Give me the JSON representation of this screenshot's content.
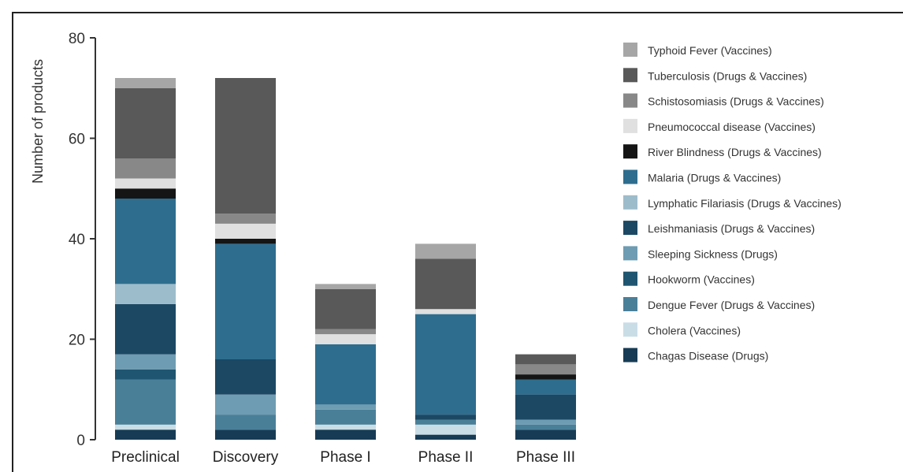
{
  "chart_data": {
    "type": "bar",
    "stacked": true,
    "title": "",
    "xlabel": "",
    "ylabel": "Number of products",
    "ylim": [
      0,
      80
    ],
    "yticks": [
      0,
      20,
      40,
      60,
      80
    ],
    "grid": false,
    "legend_position": "right",
    "categories": [
      "Preclinical",
      "Discovery",
      "Phase I",
      "Phase II",
      "Phase III"
    ],
    "series": [
      {
        "name": "Chagas Disease (Drugs)",
        "color": "#173b55",
        "values": [
          2,
          2,
          2,
          1,
          2
        ]
      },
      {
        "name": "Cholera (Vaccines)",
        "color": "#c9dde6",
        "values": [
          1,
          0,
          1,
          2,
          0
        ]
      },
      {
        "name": "Dengue Fever (Drugs & Vaccines)",
        "color": "#4a7f98",
        "values": [
          9,
          3,
          3,
          1,
          1
        ]
      },
      {
        "name": "Hookworm (Vaccines)",
        "color": "#1f5570",
        "values": [
          2,
          0,
          0,
          0,
          0
        ]
      },
      {
        "name": "Sleeping Sickness (Drugs)",
        "color": "#6e9cb2",
        "values": [
          3,
          4,
          1,
          0,
          1
        ]
      },
      {
        "name": "Leishmaniasis (Drugs & Vaccines)",
        "color": "#1c4863",
        "values": [
          10,
          7,
          0,
          1,
          5
        ]
      },
      {
        "name": "Lymphatic Filariasis (Drugs & Vaccines)",
        "color": "#9dbccb",
        "values": [
          4,
          0,
          0,
          0,
          0
        ]
      },
      {
        "name": "Malaria (Drugs & Vaccines)",
        "color": "#2e6d8e",
        "values": [
          17,
          23,
          12,
          20,
          3
        ]
      },
      {
        "name": "River Blindness (Drugs & Vaccines)",
        "color": "#151515",
        "values": [
          2,
          1,
          0,
          0,
          1
        ]
      },
      {
        "name": "Pneumococcal disease (Vaccines)",
        "color": "#e0e0e0",
        "values": [
          2,
          3,
          2,
          1,
          0
        ]
      },
      {
        "name": "Schistosomiasis (Drugs & Vaccines)",
        "color": "#888888",
        "values": [
          4,
          2,
          1,
          0,
          2
        ]
      },
      {
        "name": "Tuberculosis (Drugs & Vaccines)",
        "color": "#595959",
        "values": [
          14,
          27,
          8,
          10,
          2
        ]
      },
      {
        "name": "Typhoid Fever (Vaccines)",
        "color": "#a6a6a6",
        "values": [
          2,
          0,
          1,
          3,
          0
        ]
      }
    ]
  }
}
